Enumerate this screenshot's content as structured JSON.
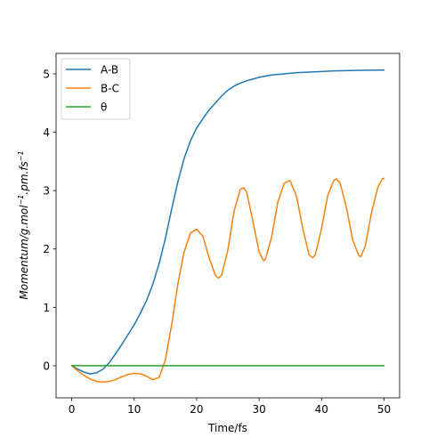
{
  "chart_data": {
    "type": "line",
    "title": "",
    "xlabel": "Time/fs",
    "ylabel_main": "Momentum/g.mol",
    "ylabel_sup1": "−1",
    "ylabel_mid": ".pm.fs",
    "ylabel_sup2": "−1",
    "xlim": [
      -2.5,
      52.5
    ],
    "ylim": [
      -0.55,
      5.35
    ],
    "x_ticks": [
      0,
      10,
      20,
      30,
      40,
      50
    ],
    "y_ticks": [
      0,
      1,
      2,
      3,
      4,
      5
    ],
    "grid": false,
    "legend_position": "top-left",
    "series": [
      {
        "name": "A-B",
        "color": "#1f77b4",
        "points": [
          [
            0,
            0
          ],
          [
            1,
            -0.06
          ],
          [
            2,
            -0.11
          ],
          [
            3,
            -0.14
          ],
          [
            4,
            -0.12
          ],
          [
            5,
            -0.06
          ],
          [
            6,
            0.05
          ],
          [
            7,
            0.2
          ],
          [
            8,
            0.36
          ],
          [
            9,
            0.53
          ],
          [
            10,
            0.7
          ],
          [
            11,
            0.9
          ],
          [
            12,
            1.12
          ],
          [
            13,
            1.4
          ],
          [
            14,
            1.75
          ],
          [
            15,
            2.18
          ],
          [
            16,
            2.68
          ],
          [
            17,
            3.15
          ],
          [
            18,
            3.55
          ],
          [
            19,
            3.85
          ],
          [
            20,
            4.07
          ],
          [
            21,
            4.23
          ],
          [
            22,
            4.38
          ],
          [
            23,
            4.5
          ],
          [
            24,
            4.62
          ],
          [
            25,
            4.72
          ],
          [
            26,
            4.79
          ],
          [
            27,
            4.84
          ],
          [
            28,
            4.88
          ],
          [
            29,
            4.91
          ],
          [
            30,
            4.94
          ],
          [
            32,
            4.98
          ],
          [
            34,
            5.0
          ],
          [
            36,
            5.02
          ],
          [
            38,
            5.03
          ],
          [
            40,
            5.04
          ],
          [
            42,
            5.05
          ],
          [
            44,
            5.055
          ],
          [
            46,
            5.06
          ],
          [
            48,
            5.063
          ],
          [
            50,
            5.065
          ]
        ]
      },
      {
        "name": "B-C",
        "color": "#ff7f0e",
        "points": [
          [
            0,
            0
          ],
          [
            1,
            -0.09
          ],
          [
            2,
            -0.17
          ],
          [
            3,
            -0.23
          ],
          [
            4,
            -0.27
          ],
          [
            5,
            -0.28
          ],
          [
            6,
            -0.27
          ],
          [
            7,
            -0.24
          ],
          [
            8,
            -0.19
          ],
          [
            9,
            -0.15
          ],
          [
            10,
            -0.13
          ],
          [
            11,
            -0.14
          ],
          [
            12,
            -0.18
          ],
          [
            13,
            -0.24
          ],
          [
            14,
            -0.2
          ],
          [
            15,
            0.1
          ],
          [
            16,
            0.7
          ],
          [
            17,
            1.4
          ],
          [
            18,
            1.95
          ],
          [
            19,
            2.27
          ],
          [
            20,
            2.34
          ],
          [
            21,
            2.22
          ],
          [
            22,
            1.85
          ],
          [
            23,
            1.55
          ],
          [
            23.5,
            1.5
          ],
          [
            24,
            1.55
          ],
          [
            25,
            1.98
          ],
          [
            26,
            2.65
          ],
          [
            27,
            3.02
          ],
          [
            27.5,
            3.05
          ],
          [
            28,
            2.98
          ],
          [
            29,
            2.48
          ],
          [
            30,
            1.95
          ],
          [
            30.7,
            1.8
          ],
          [
            31,
            1.82
          ],
          [
            32,
            2.2
          ],
          [
            33,
            2.8
          ],
          [
            34,
            3.12
          ],
          [
            34.8,
            3.17
          ],
          [
            35,
            3.16
          ],
          [
            36,
            2.9
          ],
          [
            37,
            2.35
          ],
          [
            38,
            1.9
          ],
          [
            38.6,
            1.85
          ],
          [
            39,
            1.9
          ],
          [
            40,
            2.35
          ],
          [
            41,
            2.92
          ],
          [
            42,
            3.18
          ],
          [
            42.4,
            3.2
          ],
          [
            43,
            3.12
          ],
          [
            44,
            2.7
          ],
          [
            45,
            2.15
          ],
          [
            46,
            1.88
          ],
          [
            46.3,
            1.87
          ],
          [
            47,
            2.05
          ],
          [
            48,
            2.62
          ],
          [
            49,
            3.05
          ],
          [
            49.7,
            3.2
          ],
          [
            50,
            3.21
          ]
        ]
      },
      {
        "name": "θ",
        "color": "#2ca02c",
        "points": [
          [
            0,
            0
          ],
          [
            50,
            0
          ]
        ]
      }
    ]
  }
}
